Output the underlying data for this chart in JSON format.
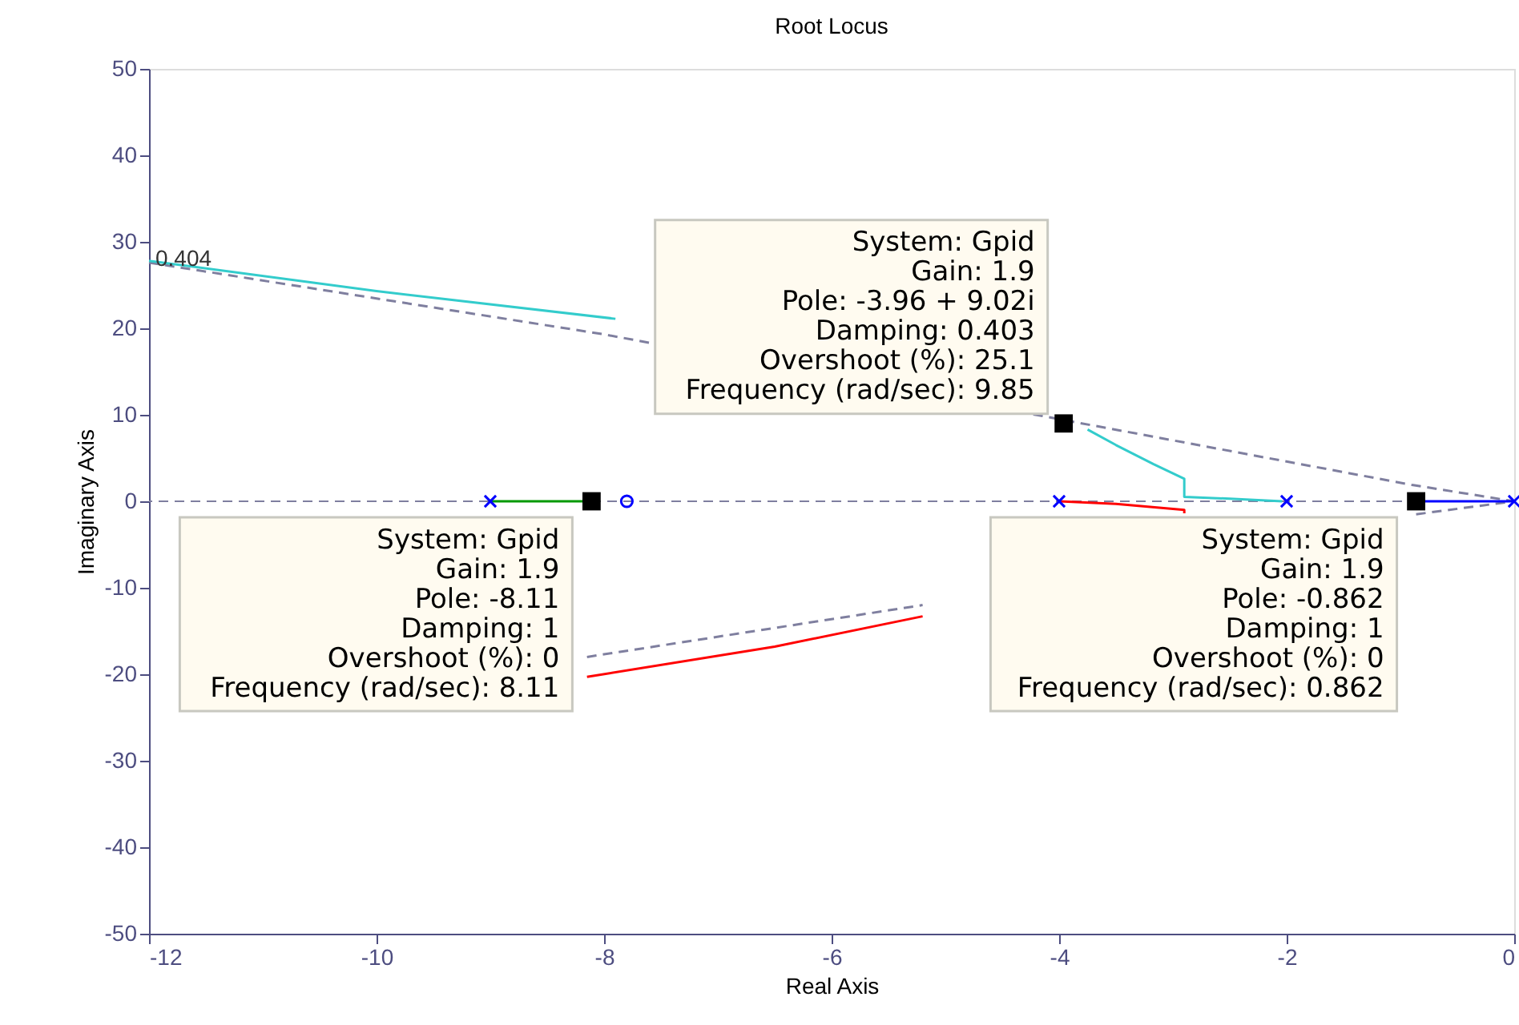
{
  "chart_data": {
    "type": "line",
    "title": "Root Locus",
    "xlabel": "Real Axis",
    "ylabel": "Imaginary Axis",
    "xlim": [
      -12,
      0
    ],
    "ylim": [
      -50,
      50
    ],
    "xticks": [
      -12,
      -10,
      -8,
      -6,
      -4,
      -2,
      0
    ],
    "yticks": [
      -50,
      -40,
      -30,
      -20,
      -10,
      0,
      10,
      20,
      30,
      40,
      50
    ],
    "series": [
      {
        "color": "#7f7f9f",
        "line_style": "dashed",
        "x": [
          -12,
          -8,
          -3.96,
          -0.9,
          0
        ],
        "values": [
          27.6,
          19.3,
          9.4,
          1.9,
          0
        ]
      },
      {
        "color": "#7f7f9f",
        "line_style": "dashed",
        "x": [
          -8.15,
          -5.2,
          -3,
          -0.862,
          0
        ],
        "values": [
          -18.0,
          -12,
          null,
          -1.5,
          0
        ]
      },
      {
        "color": "#33cccc",
        "line_style": "solid",
        "x": [
          -12,
          -10,
          -7.9,
          -6,
          -3.75,
          -3.5,
          -3.17,
          -2.9,
          -2.9,
          -2.5,
          -2.04
        ],
        "values": [
          27.8,
          24.3,
          21.1,
          null,
          8.3,
          6.5,
          4.3,
          2.6,
          0.5,
          0.3,
          0
        ]
      },
      {
        "color": "#ff0000",
        "line_style": "solid",
        "x": [
          -4,
          -3.5,
          -2.9,
          -2.9,
          -4,
          -5.2,
          -6.5,
          -8.15
        ],
        "values": [
          0,
          -0.3,
          -1.0,
          -1.4,
          null,
          -13.3,
          -16.8,
          -20.3
        ]
      },
      {
        "color": "#009900",
        "line_style": "solid",
        "x": [
          -9,
          -8.11
        ],
        "values": [
          0,
          0
        ]
      },
      {
        "color": "#0000ff",
        "line_style": "solid",
        "x": [
          -0.862,
          0
        ],
        "values": [
          0,
          0
        ]
      },
      {
        "type": "scatter",
        "color": "#0000ff",
        "marker": "cross",
        "x": [
          -9,
          -4,
          -2,
          0
        ],
        "values": [
          0,
          0,
          0,
          0
        ]
      },
      {
        "type": "scatter",
        "color": "#0000ff",
        "marker": "circle",
        "x": [
          -7.8
        ],
        "values": [
          0
        ]
      },
      {
        "type": "scatter",
        "color": "#000000",
        "marker": "square",
        "x": [
          -8.11,
          -3.96,
          -0.862
        ],
        "values": [
          0,
          9.0,
          0
        ]
      }
    ],
    "ref_lines": [
      {
        "axis": "y",
        "value": 0,
        "color": "#7f7f9f",
        "line_style": "dashed"
      }
    ],
    "annotations": [
      {
        "text": "0.404",
        "x": -12,
        "y": 27.6
      },
      {
        "text": "System: Gpid\nGain: 1.9\nPole: -3.96 + 9.02i\nDamping: 0.403\nOvershoot (%): 25.1\nFrequency (rad/sec): 9.85",
        "x": -3.96,
        "y": 9.0
      },
      {
        "text": "System: Gpid\nGain: 1.9\nPole: -8.11\nDamping: 1\nOvershoot (%): 0\nFrequency (rad/sec): 8.11",
        "x": -8.11,
        "y": 0
      },
      {
        "text": "System: Gpid\nGain: 1.9\nPole: -0.862\nDamping: 1\nOvershoot (%): 0\nFrequency (rad/sec): 0.862",
        "x": -0.862,
        "y": 0
      }
    ]
  }
}
